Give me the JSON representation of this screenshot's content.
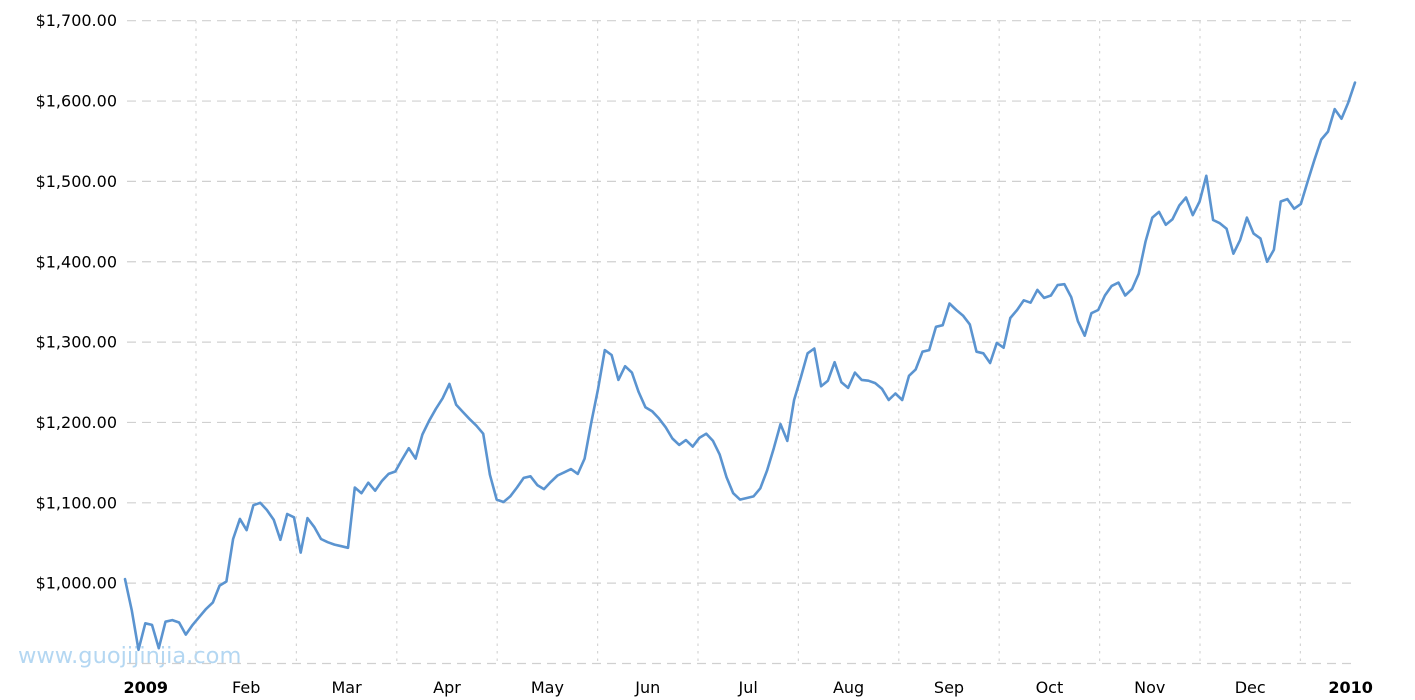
{
  "watermark": {
    "text": "www.guojijinjia.com",
    "color": "#b4d7f2"
  },
  "chart_data": {
    "type": "line",
    "title": "",
    "legend_position": "none",
    "grid": "dashed-gray",
    "x_axis": {
      "tick_labels": [
        {
          "label": "2009",
          "bold": true
        },
        {
          "label": "Feb",
          "bold": false
        },
        {
          "label": "Mar",
          "bold": false
        },
        {
          "label": "Apr",
          "bold": false
        },
        {
          "label": "May",
          "bold": false
        },
        {
          "label": "Jun",
          "bold": false
        },
        {
          "label": "Jul",
          "bold": false
        },
        {
          "label": "Aug",
          "bold": false
        },
        {
          "label": "Sep",
          "bold": false
        },
        {
          "label": "Oct",
          "bold": false
        },
        {
          "label": "Nov",
          "bold": false
        },
        {
          "label": "Dec",
          "bold": false
        },
        {
          "label": "2010",
          "bold": true
        }
      ]
    },
    "y_axis": {
      "ticks": [
        {
          "label": "$1,700.00",
          "value": 1700
        },
        {
          "label": "$1,600.00",
          "value": 1600
        },
        {
          "label": "$1,500.00",
          "value": 1500
        },
        {
          "label": "$1,400.00",
          "value": 1400
        },
        {
          "label": "$1,300.00",
          "value": 1300
        },
        {
          "label": "$1,200.00",
          "value": 1200
        },
        {
          "label": "$1,100.00",
          "value": 1100
        },
        {
          "label": "$1,000.00",
          "value": 1000
        },
        {
          "label": "",
          "value": 900
        }
      ],
      "ylim": [
        900,
        1725
      ],
      "unit": "USD"
    },
    "series": [
      {
        "name": "price-usd",
        "color": "#5b94d0",
        "values": [
          1005,
          966,
          917,
          950,
          948,
          919,
          952,
          954,
          951,
          936,
          948,
          958,
          968,
          976,
          997,
          1002,
          1055,
          1080,
          1066,
          1097,
          1100,
          1091,
          1079,
          1054,
          1086,
          1082,
          1038,
          1081,
          1070,
          1055,
          1051,
          1048,
          1046,
          1044,
          1119,
          1112,
          1125,
          1115,
          1127,
          1136,
          1139,
          1154,
          1168,
          1155,
          1185,
          1202,
          1217,
          1230,
          1248,
          1222,
          1213,
          1204,
          1196,
          1186,
          1135,
          1104,
          1101,
          1108,
          1119,
          1131,
          1133,
          1122,
          1117,
          1126,
          1134,
          1138,
          1142,
          1136,
          1155,
          1200,
          1242,
          1290,
          1284,
          1253,
          1270,
          1262,
          1238,
          1219,
          1214,
          1205,
          1194,
          1180,
          1172,
          1178,
          1170,
          1181,
          1186,
          1177,
          1160,
          1132,
          1112,
          1104,
          1106,
          1108,
          1118,
          1140,
          1168,
          1198,
          1177,
          1228,
          1256,
          1286,
          1292,
          1245,
          1252,
          1275,
          1250,
          1243,
          1262,
          1253,
          1252,
          1249,
          1242,
          1228,
          1236,
          1228,
          1258,
          1266,
          1288,
          1290,
          1319,
          1321,
          1348,
          1340,
          1333,
          1322,
          1288,
          1286,
          1274,
          1299,
          1293,
          1330,
          1340,
          1352,
          1349,
          1365,
          1355,
          1358,
          1371,
          1372,
          1356,
          1326,
          1308,
          1336,
          1340,
          1358,
          1370,
          1374,
          1358,
          1366,
          1385,
          1425,
          1455,
          1462,
          1446,
          1453,
          1470,
          1480,
          1458,
          1475,
          1507,
          1452,
          1448,
          1441,
          1410,
          1427,
          1455,
          1435,
          1429,
          1400,
          1415,
          1475,
          1478,
          1466,
          1472,
          1500,
          1527,
          1552,
          1562,
          1590,
          1578,
          1598,
          1623
        ]
      }
    ]
  }
}
